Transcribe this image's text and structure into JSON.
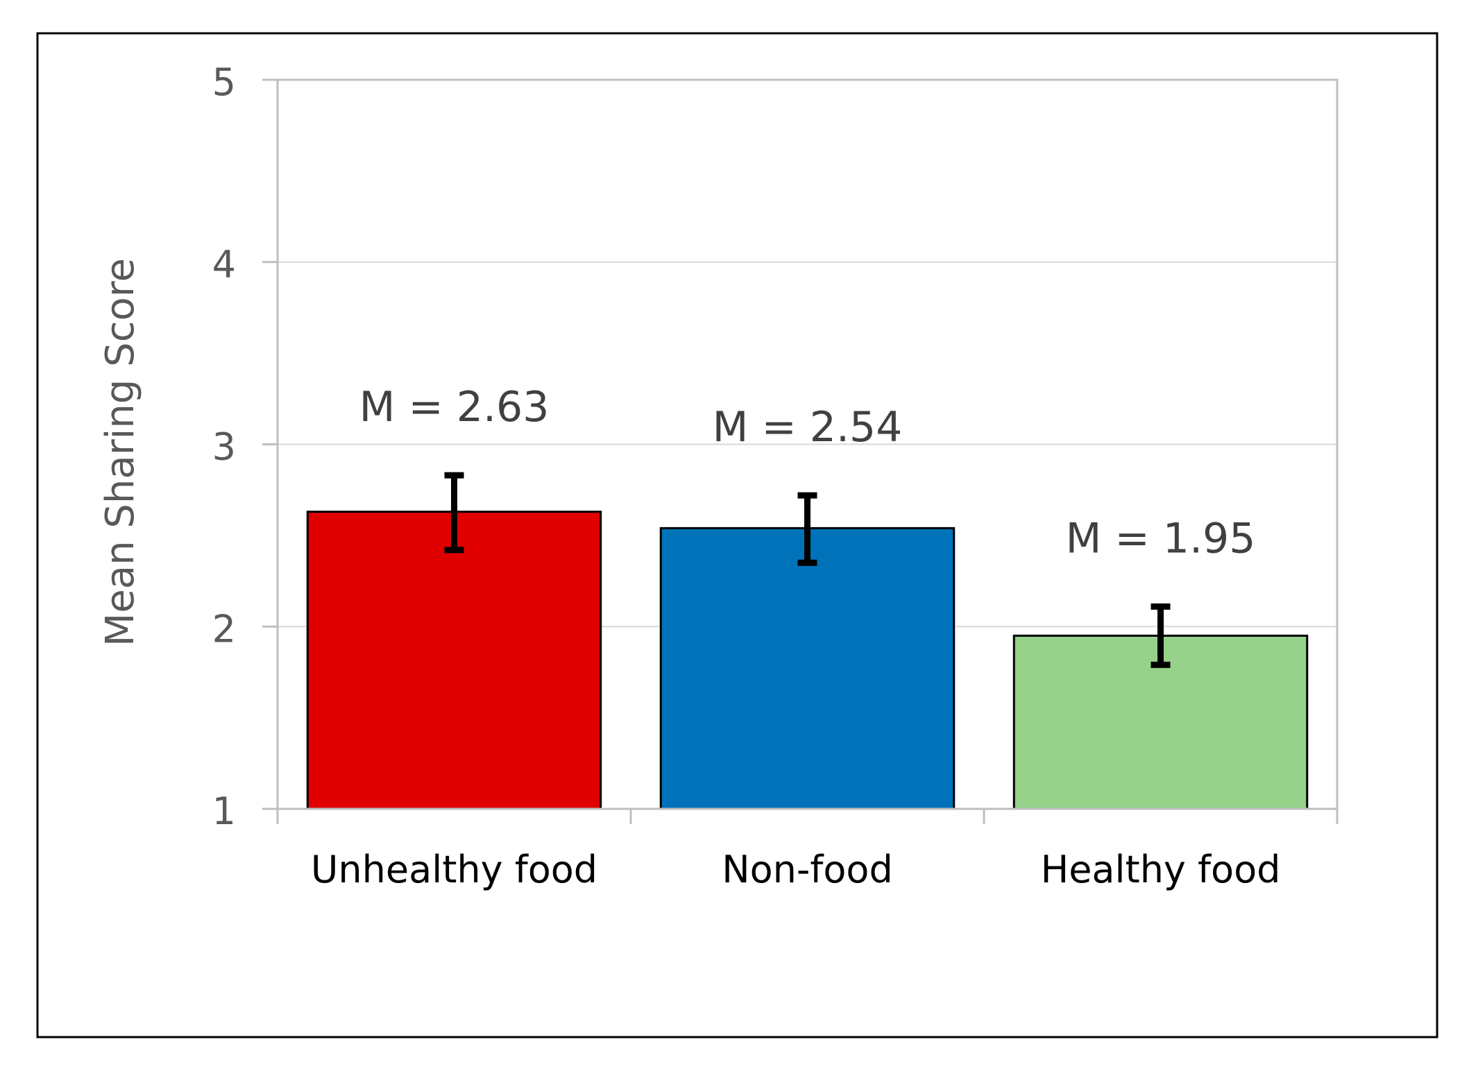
{
  "chart_data": {
    "type": "bar",
    "title": "",
    "xlabel": "",
    "ylabel": "Mean Sharing Score",
    "ylim": [
      1,
      5
    ],
    "yticks": [
      "1",
      "2",
      "3",
      "4",
      "5"
    ],
    "grid": true,
    "categories": [
      "Unhealthy food",
      "Non-food",
      "Healthy food"
    ],
    "values": [
      2.63,
      2.54,
      1.95
    ],
    "error_low": [
      2.42,
      2.35,
      1.79
    ],
    "error_high": [
      2.83,
      2.72,
      2.11
    ],
    "data_labels": [
      "M = 2.63",
      "M = 2.54",
      "M = 1.95"
    ],
    "colors": [
      "#e00000",
      "#0072b9",
      "#96d28a"
    ]
  }
}
